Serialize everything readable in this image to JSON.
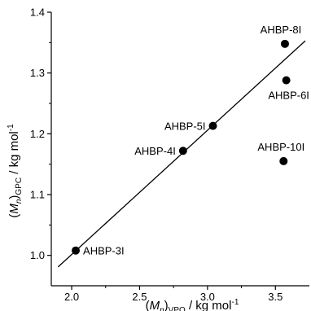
{
  "chart_data": {
    "type": "scatter",
    "xlabel": {
      "prefix": "(",
      "italic": "M",
      "sub1": "n",
      "mid": ")",
      "sub2": "VPO",
      "suffix": " / kg mol",
      "sup": "-1"
    },
    "ylabel": {
      "prefix": "(",
      "italic": "M",
      "sub1": "n",
      "mid": ")",
      "sub2": "GPC",
      "suffix": " / kg mol",
      "sup": "-1"
    },
    "xlim": [
      1.85,
      3.75
    ],
    "ylim": [
      0.95,
      1.4
    ],
    "x_ticks": [
      "2.0",
      "2.5",
      "3.0",
      "3.5"
    ],
    "x_tick_values": [
      2.0,
      2.5,
      3.0,
      3.5
    ],
    "y_ticks": [
      "1.0",
      "1.1",
      "1.2",
      "1.3",
      "1.4"
    ],
    "y_tick_values": [
      1.0,
      1.1,
      1.2,
      1.3,
      1.4
    ],
    "points": [
      {
        "label": "AHBP-3I",
        "x": 2.03,
        "y": 1.008
      },
      {
        "label": "AHBP-4I",
        "x": 2.82,
        "y": 1.172
      },
      {
        "label": "AHBP-5I",
        "x": 3.04,
        "y": 1.213
      },
      {
        "label": "AHBP-6I",
        "x": 3.58,
        "y": 1.288
      },
      {
        "label": "AHBP-8I",
        "x": 3.57,
        "y": 1.348
      },
      {
        "label": "AHBP-10I",
        "x": 3.56,
        "y": 1.155
      }
    ],
    "fit_line": {
      "x": [
        1.9,
        3.72
      ],
      "y": [
        0.981,
        1.353
      ]
    },
    "grid": false,
    "legend": "none",
    "colors": {
      "points": "#000000",
      "line": "#000000",
      "axes": "#000000"
    }
  }
}
